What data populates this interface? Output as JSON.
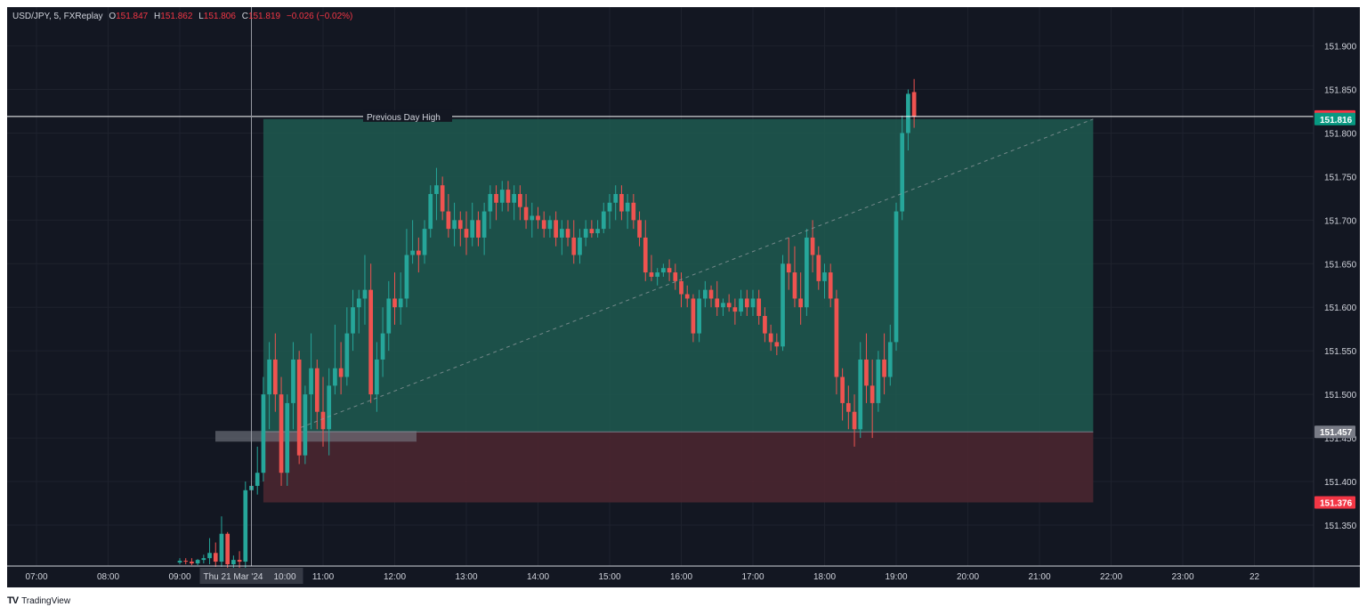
{
  "header": {
    "symbol": "USD/JPY, 5, FXReplay",
    "open_label": "O",
    "open": "151.847",
    "high_label": "H",
    "high": "151.862",
    "low_label": "L",
    "low": "151.806",
    "close_label": "C",
    "close": "151.819",
    "change": "−0.026 (−0.02%)"
  },
  "footer": {
    "brand": "TradingView",
    "logo": "TV"
  },
  "colors": {
    "background": "#131722",
    "up": "#26a69a",
    "down": "#ef5350",
    "profit_zone": "#1e5a50",
    "loss_zone": "#4a2630",
    "axis_text": "#d1d4dc",
    "grid": "#1e222d"
  },
  "chart_data": {
    "type": "candlestick",
    "interval": "5",
    "x_ticks": [
      "07:00",
      "08:00",
      "09:00",
      "10:00",
      "11:00",
      "12:00",
      "13:00",
      "14:00",
      "15:00",
      "16:00",
      "17:00",
      "18:00",
      "19:00",
      "20:00",
      "21:00",
      "22:00",
      "23:00",
      "22"
    ],
    "crosshair_label": "Thu 21 Mar '24",
    "y_ticks": [
      "151.900",
      "151.850",
      "151.800",
      "151.750",
      "151.700",
      "151.650",
      "151.600",
      "151.550",
      "151.500",
      "151.450",
      "151.400",
      "151.350"
    ],
    "ylim": [
      151.305,
      151.92
    ],
    "horizontal_line": {
      "label": "Previous Day High",
      "price": 151.819,
      "price_label": "151.819"
    },
    "price_labels": [
      {
        "text": "151.819",
        "price": 151.819,
        "color": "#f23645"
      },
      {
        "text": "151.816",
        "price": 151.816,
        "color": "#089981"
      },
      {
        "text": "151.457",
        "price": 151.457,
        "color": "#787b86"
      },
      {
        "text": "151.376",
        "price": 151.376,
        "color": "#f23645"
      }
    ],
    "position": {
      "start_time": "10:10",
      "end_time": "21:45",
      "entry": 151.457,
      "target": 151.816,
      "stop": 151.376
    },
    "candles_start_time": "09:00",
    "candles": [
      [
        151.307,
        151.312,
        151.305,
        151.309
      ],
      [
        151.309,
        151.312,
        151.305,
        151.308
      ],
      [
        151.308,
        151.312,
        151.304,
        151.306
      ],
      [
        151.306,
        151.311,
        151.304,
        151.31
      ],
      [
        151.31,
        151.316,
        151.306,
        151.312
      ],
      [
        151.312,
        151.335,
        151.305,
        151.318
      ],
      [
        151.318,
        151.33,
        151.302,
        151.308
      ],
      [
        151.308,
        151.36,
        151.302,
        151.34
      ],
      [
        151.34,
        151.342,
        151.296,
        151.305
      ],
      [
        151.305,
        151.315,
        151.3,
        151.31
      ],
      [
        151.31,
        151.32,
        151.296,
        151.308
      ],
      [
        151.308,
        151.4,
        151.3,
        151.39
      ],
      [
        151.39,
        151.42,
        151.385,
        151.395
      ],
      [
        151.395,
        151.44,
        151.385,
        151.41
      ],
      [
        151.41,
        151.52,
        151.4,
        151.5
      ],
      [
        151.5,
        151.56,
        151.46,
        151.54
      ],
      [
        151.54,
        151.57,
        151.48,
        151.5
      ],
      [
        151.5,
        151.52,
        151.395,
        151.41
      ],
      [
        151.41,
        151.5,
        151.395,
        151.49
      ],
      [
        151.49,
        151.56,
        151.46,
        151.54
      ],
      [
        151.54,
        151.55,
        151.42,
        151.43
      ],
      [
        151.43,
        151.51,
        151.42,
        151.5
      ],
      [
        151.5,
        151.57,
        151.46,
        151.53
      ],
      [
        151.53,
        151.54,
        151.46,
        151.48
      ],
      [
        151.48,
        151.52,
        151.44,
        151.46
      ],
      [
        151.46,
        151.53,
        151.43,
        151.51
      ],
      [
        151.51,
        151.58,
        151.5,
        151.53
      ],
      [
        151.53,
        151.56,
        151.5,
        151.52
      ],
      [
        151.52,
        151.6,
        151.51,
        151.57
      ],
      [
        151.57,
        151.62,
        151.55,
        151.6
      ],
      [
        151.6,
        151.62,
        151.57,
        151.61
      ],
      [
        151.61,
        151.66,
        151.58,
        151.62
      ],
      [
        151.62,
        151.65,
        151.49,
        151.5
      ],
      [
        151.5,
        151.56,
        151.48,
        151.54
      ],
      [
        151.54,
        151.6,
        151.52,
        151.57
      ],
      [
        151.57,
        151.63,
        151.55,
        151.61
      ],
      [
        151.61,
        151.64,
        151.58,
        151.6
      ],
      [
        151.6,
        151.64,
        151.58,
        151.61
      ],
      [
        151.61,
        151.69,
        151.6,
        151.66
      ],
      [
        151.66,
        151.7,
        151.65,
        151.665
      ],
      [
        151.665,
        151.68,
        151.64,
        151.66
      ],
      [
        151.66,
        151.7,
        151.65,
        151.69
      ],
      [
        151.69,
        151.74,
        151.68,
        151.73
      ],
      [
        151.73,
        151.76,
        151.7,
        151.74
      ],
      [
        151.74,
        151.75,
        151.7,
        151.71
      ],
      [
        151.71,
        151.73,
        151.68,
        151.69
      ],
      [
        151.69,
        151.72,
        151.67,
        151.7
      ],
      [
        151.7,
        151.71,
        151.67,
        151.69
      ],
      [
        151.69,
        151.71,
        151.66,
        151.68
      ],
      [
        151.68,
        151.72,
        151.67,
        151.7
      ],
      [
        151.7,
        151.71,
        151.67,
        151.68
      ],
      [
        151.68,
        151.72,
        151.66,
        151.71
      ],
      [
        151.71,
        151.74,
        151.69,
        151.73
      ],
      [
        151.73,
        151.74,
        151.7,
        151.72
      ],
      [
        151.72,
        151.745,
        151.71,
        151.735
      ],
      [
        151.735,
        151.745,
        151.71,
        151.72
      ],
      [
        151.72,
        151.74,
        151.7,
        151.73
      ],
      [
        151.73,
        151.74,
        151.7,
        151.715
      ],
      [
        151.715,
        151.73,
        151.69,
        151.7
      ],
      [
        151.7,
        151.72,
        151.68,
        151.705
      ],
      [
        151.705,
        151.715,
        151.69,
        151.7
      ],
      [
        151.7,
        151.71,
        151.68,
        151.69
      ],
      [
        151.69,
        151.705,
        151.68,
        151.7
      ],
      [
        151.7,
        151.71,
        151.67,
        151.68
      ],
      [
        151.68,
        151.7,
        151.66,
        151.69
      ],
      [
        151.69,
        151.7,
        151.67,
        151.68
      ],
      [
        151.68,
        151.7,
        151.65,
        151.66
      ],
      [
        151.66,
        151.69,
        151.65,
        151.68
      ],
      [
        151.68,
        151.7,
        151.67,
        151.69
      ],
      [
        151.69,
        151.7,
        151.68,
        151.685
      ],
      [
        151.685,
        151.7,
        151.68,
        151.69
      ],
      [
        151.69,
        151.72,
        151.685,
        151.71
      ],
      [
        151.71,
        151.73,
        151.69,
        151.72
      ],
      [
        151.72,
        151.74,
        151.7,
        151.73
      ],
      [
        151.73,
        151.74,
        151.7,
        151.71
      ],
      [
        151.71,
        151.73,
        151.69,
        151.72
      ],
      [
        151.72,
        151.73,
        151.69,
        151.7
      ],
      [
        151.7,
        151.71,
        151.67,
        151.68
      ],
      [
        151.68,
        151.7,
        151.63,
        151.64
      ],
      [
        151.64,
        151.66,
        151.63,
        151.635
      ],
      [
        151.635,
        151.645,
        151.625,
        151.64
      ],
      [
        151.64,
        151.65,
        151.635,
        151.645
      ],
      [
        151.645,
        151.655,
        151.63,
        151.64
      ],
      [
        151.64,
        151.65,
        151.62,
        151.63
      ],
      [
        151.63,
        151.64,
        151.6,
        151.615
      ],
      [
        151.615,
        151.625,
        151.6,
        151.61
      ],
      [
        151.61,
        151.615,
        151.56,
        151.57
      ],
      [
        151.57,
        151.62,
        151.56,
        151.61
      ],
      [
        151.61,
        151.63,
        151.6,
        151.62
      ],
      [
        151.62,
        151.625,
        151.6,
        151.61
      ],
      [
        151.61,
        151.63,
        151.59,
        151.6
      ],
      [
        151.6,
        151.61,
        151.59,
        151.605
      ],
      [
        151.605,
        151.615,
        151.595,
        151.6
      ],
      [
        151.6,
        151.61,
        151.58,
        151.595
      ],
      [
        151.595,
        151.62,
        151.59,
        151.61
      ],
      [
        151.61,
        151.62,
        151.59,
        151.6
      ],
      [
        151.6,
        151.62,
        151.59,
        151.61
      ],
      [
        151.61,
        151.62,
        151.58,
        151.59
      ],
      [
        151.59,
        151.6,
        151.56,
        151.57
      ],
      [
        151.57,
        151.58,
        151.55,
        151.56
      ],
      [
        151.56,
        151.57,
        151.545,
        151.555
      ],
      [
        151.555,
        151.66,
        151.55,
        151.65
      ],
      [
        151.65,
        151.68,
        151.62,
        151.64
      ],
      [
        151.64,
        151.67,
        151.6,
        151.61
      ],
      [
        151.61,
        151.64,
        151.58,
        151.6
      ],
      [
        151.6,
        151.69,
        151.59,
        151.68
      ],
      [
        151.68,
        151.7,
        151.64,
        151.66
      ],
      [
        151.66,
        151.67,
        151.62,
        151.63
      ],
      [
        151.63,
        151.65,
        151.61,
        151.64
      ],
      [
        151.64,
        151.65,
        151.6,
        151.61
      ],
      [
        151.61,
        151.62,
        151.5,
        151.52
      ],
      [
        151.52,
        151.53,
        151.47,
        151.49
      ],
      [
        151.49,
        151.51,
        151.46,
        151.48
      ],
      [
        151.48,
        151.5,
        151.44,
        151.46
      ],
      [
        151.46,
        151.56,
        151.45,
        151.54
      ],
      [
        151.54,
        151.57,
        151.49,
        151.51
      ],
      [
        151.51,
        151.54,
        151.45,
        151.49
      ],
      [
        151.49,
        151.55,
        151.48,
        151.54
      ],
      [
        151.54,
        151.57,
        151.5,
        151.52
      ],
      [
        151.52,
        151.58,
        151.51,
        151.56
      ],
      [
        151.56,
        151.72,
        151.55,
        151.71
      ],
      [
        151.71,
        151.82,
        151.7,
        151.8
      ],
      [
        151.8,
        151.85,
        151.78,
        151.845
      ],
      [
        151.847,
        151.862,
        151.806,
        151.819
      ]
    ]
  }
}
